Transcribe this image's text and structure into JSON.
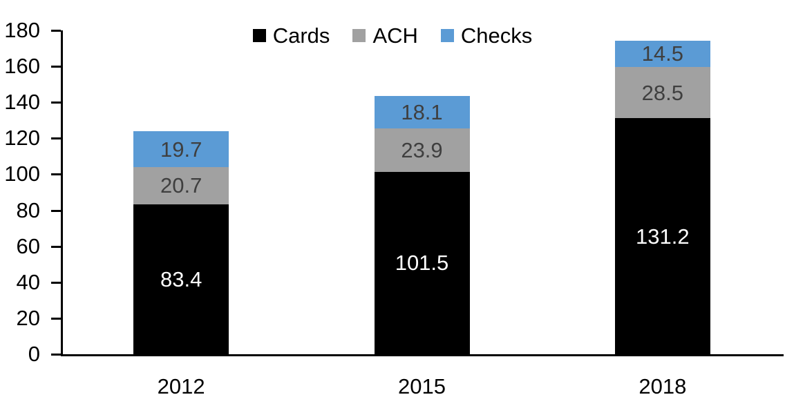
{
  "chart_data": {
    "type": "bar",
    "stacked": true,
    "title": "",
    "xlabel": "",
    "ylabel": "",
    "categories": [
      "2012",
      "2015",
      "2018"
    ],
    "series": [
      {
        "name": "Cards",
        "color": "#000000",
        "label_color": "#FFFFFF",
        "values": [
          83.4,
          101.5,
          131.2
        ]
      },
      {
        "name": "ACH",
        "color": "#A1A1A1",
        "label_color": "#3F3F3F",
        "values": [
          20.7,
          23.9,
          28.5
        ]
      },
      {
        "name": "Checks",
        "color": "#5B9BD5",
        "label_color": "#3F3F3F",
        "values": [
          19.7,
          18.1,
          14.5
        ]
      }
    ],
    "totals": [
      123.8,
      143.5,
      174.2
    ],
    "ylim": [
      0,
      180
    ],
    "yticks": [
      0,
      20,
      40,
      60,
      80,
      100,
      120,
      140,
      160,
      180
    ],
    "grid": false,
    "legend": {
      "position": "top",
      "entries": [
        "Cards",
        "ACH",
        "Checks"
      ]
    },
    "axis_color": "#000000",
    "background": "#FFFFFF"
  }
}
